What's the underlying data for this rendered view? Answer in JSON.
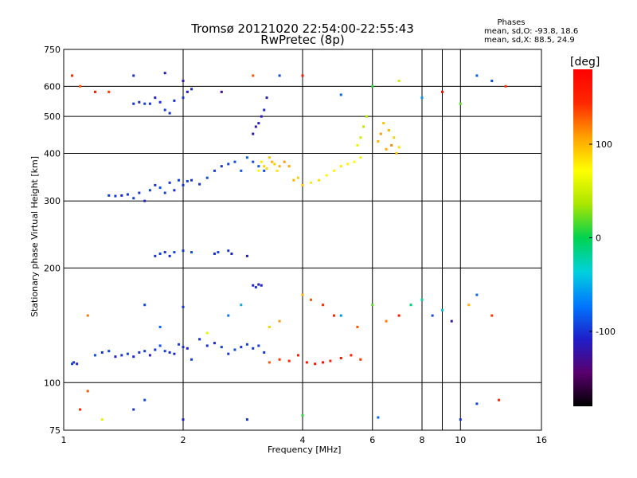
{
  "chart_data": {
    "type": "scatter",
    "title": "Tromsø 20121020 22:54:00-22:55:43",
    "subtitle": "RwPretec (8p)",
    "xlabel": "Frequency [MHz]",
    "ylabel": "Stationary phase Virtual Height [km]",
    "x_scale": "log",
    "y_scale": "log",
    "xlim": [
      1,
      16
    ],
    "ylim": [
      75,
      750
    ],
    "x_ticks": [
      1,
      2,
      4,
      6,
      8,
      10,
      16
    ],
    "x_tick_labels": [
      "1",
      "2",
      "4",
      "6",
      "8",
      "10",
      "16"
    ],
    "y_ticks": [
      75,
      100,
      200,
      300,
      400,
      500,
      600,
      750
    ],
    "y_tick_labels": [
      "75",
      "100",
      "200",
      "300",
      "400",
      "500",
      "600",
      "750"
    ],
    "grid": true,
    "colorbar": {
      "label": "[deg]",
      "range": [
        -180,
        180
      ],
      "ticks": [
        -100,
        0,
        100
      ],
      "tick_labels": [
        "-100",
        "0",
        "100"
      ],
      "colors": [
        "#000000",
        "#5a006e",
        "#1e1ec8",
        "#0078ff",
        "#00d2dc",
        "#00d250",
        "#aae600",
        "#ffff00",
        "#ffa000",
        "#ff2800",
        "#ff0000"
      ]
    },
    "stats": {
      "title": "Phases",
      "o_mode": "mean, sd,O: -93.8, 18.6",
      "x_mode": "mean, sd,X:  88.5, 24.9"
    },
    "series": [
      {
        "x": [
          1.05,
          1.06,
          1.08,
          1.2,
          1.25,
          1.3,
          1.35,
          1.4,
          1.45,
          1.5,
          1.55,
          1.6,
          1.65,
          1.7,
          1.75,
          1.8,
          1.85,
          1.9,
          1.95,
          2.0,
          2.05,
          2.1,
          2.2,
          2.3,
          2.4,
          2.5,
          2.6,
          2.7,
          2.8,
          2.9,
          3.0,
          3.1,
          3.2
        ],
        "y": [
          112,
          113,
          112,
          118,
          120,
          121,
          117,
          118,
          119,
          117,
          120,
          121,
          118,
          122,
          125,
          121,
          120,
          119,
          126,
          124,
          123,
          115,
          130,
          125,
          127,
          124,
          119,
          122,
          124,
          126,
          123,
          125,
          120
        ],
        "phase": [
          -95,
          -100,
          -105,
          -90,
          -100,
          -95,
          -110,
          -100,
          -95,
          -105,
          -100,
          -95,
          -110,
          -100,
          -90,
          -95,
          -100,
          -105,
          -95,
          -100,
          -110,
          -95,
          -100,
          -100,
          -105,
          -95,
          -100,
          -90,
          -100,
          -95,
          -100,
          -95,
          -100
        ]
      },
      {
        "x": [
          1.3,
          1.35,
          1.4,
          1.45,
          1.5,
          1.55,
          1.6,
          1.65,
          1.7,
          1.75,
          1.8,
          1.85,
          1.9,
          1.95,
          2.0,
          2.05,
          2.1,
          2.2,
          2.3,
          2.4,
          2.5,
          2.6,
          2.7,
          2.8,
          2.9,
          3.0,
          3.1,
          3.2
        ],
        "y": [
          310,
          309,
          310,
          312,
          305,
          315,
          300,
          320,
          330,
          325,
          315,
          335,
          320,
          340,
          330,
          338,
          340,
          332,
          345,
          360,
          370,
          375,
          380,
          360,
          390,
          380,
          370,
          360
        ],
        "phase": [
          -95,
          -100,
          -105,
          -100,
          -95,
          -100,
          -105,
          -95,
          -100,
          -90,
          -95,
          -100,
          -105,
          -95,
          -100,
          -95,
          -100,
          -100,
          -90,
          -95,
          -100,
          -95,
          -90,
          -85,
          -80,
          -90,
          -85,
          -90
        ]
      },
      {
        "x": [
          3.1,
          3.15,
          3.2,
          3.25,
          3.3,
          3.35,
          3.4,
          3.45,
          3.5,
          3.6,
          3.7,
          3.8,
          3.9,
          4.0,
          4.2,
          4.4,
          4.6,
          4.8,
          5.0,
          5.2,
          5.4,
          5.6
        ],
        "y": [
          360,
          380,
          370,
          365,
          390,
          380,
          375,
          360,
          370,
          380,
          370,
          340,
          345,
          330,
          335,
          340,
          350,
          360,
          370,
          375,
          380,
          390
        ],
        "phase": [
          70,
          80,
          90,
          85,
          95,
          100,
          90,
          80,
          100,
          110,
          105,
          100,
          90,
          95,
          80,
          85,
          75,
          70,
          80,
          75,
          70,
          65
        ]
      },
      {
        "x": [
          5.5,
          5.6,
          5.7,
          5.8,
          6.2,
          6.3,
          6.4,
          6.5,
          6.6,
          6.7,
          6.8,
          6.9,
          7.0
        ],
        "y": [
          420,
          440,
          470,
          500,
          430,
          450,
          480,
          410,
          460,
          420,
          440,
          400,
          415
        ],
        "phase": [
          60,
          50,
          45,
          40,
          100,
          110,
          95,
          105,
          100,
          115,
          90,
          95,
          85
        ]
      },
      {
        "x": [
          1.5,
          1.55,
          1.6,
          1.65,
          1.7,
          1.75,
          1.8,
          1.85,
          1.9,
          2.0,
          2.05,
          2.1,
          3.0,
          3.05,
          3.1,
          3.15,
          3.2,
          3.25
        ],
        "y": [
          540,
          545,
          540,
          540,
          560,
          545,
          520,
          510,
          550,
          560,
          580,
          590,
          450,
          470,
          480,
          500,
          520,
          560
        ],
        "phase": [
          -100,
          -105,
          -95,
          -100,
          -110,
          -100,
          -95,
          -100,
          -105,
          -100,
          -110,
          -105,
          -115,
          -120,
          -110,
          -115,
          -105,
          -110
        ]
      },
      {
        "x": [
          1.7,
          1.75,
          1.8,
          1.85,
          1.9,
          2.0,
          2.1,
          2.4,
          2.45,
          2.6,
          2.65,
          2.9,
          3.0,
          3.05,
          3.1,
          3.15
        ],
        "y": [
          215,
          218,
          220,
          215,
          220,
          222,
          220,
          218,
          220,
          222,
          218,
          215,
          180,
          178,
          181,
          180
        ],
        "phase": [
          -100,
          -95,
          -100,
          -105,
          -95,
          -100,
          -90,
          -100,
          -95,
          -100,
          -105,
          -110,
          -105,
          -100,
          -110,
          -105
        ]
      },
      {
        "x": [
          1.15,
          1.6,
          1.75,
          2.0,
          2.3,
          2.6,
          2.8,
          3.3,
          3.5,
          4.0,
          4.2,
          4.5,
          4.8,
          5.0,
          5.5,
          6.0,
          6.5,
          7.0,
          7.5,
          8.0,
          8.5,
          9.0,
          9.5,
          10.5,
          11.0,
          12.0
        ],
        "y": [
          150,
          160,
          140,
          158,
          135,
          150,
          160,
          140,
          145,
          170,
          165,
          160,
          150,
          150,
          140,
          160,
          145,
          150,
          160,
          165,
          150,
          155,
          145,
          160,
          170,
          150
        ],
        "phase": [
          120,
          -90,
          -80,
          -100,
          60,
          -70,
          -50,
          90,
          110,
          100,
          130,
          140,
          150,
          -60,
          130,
          20,
          120,
          160,
          -10,
          -20,
          -90,
          -40,
          -120,
          100,
          -80,
          140
        ]
      },
      {
        "x": [
          3.3,
          3.5,
          3.7,
          3.9,
          4.1,
          4.3,
          4.5,
          4.7,
          5.0,
          5.3,
          5.6
        ],
        "y": [
          113,
          115,
          114,
          118,
          113,
          112,
          113,
          114,
          116,
          118,
          115
        ],
        "phase": [
          130,
          140,
          150,
          155,
          160,
          165,
          165,
          150,
          160,
          155,
          140
        ]
      },
      {
        "x": [
          1.05,
          1.1,
          1.2,
          1.3,
          1.5,
          1.8,
          2.0,
          2.5,
          3.0,
          3.5,
          4.0,
          5.0,
          6.0,
          7.0,
          8.0,
          9.0,
          10.0,
          11.0,
          12.0,
          13.0
        ],
        "y": [
          640,
          600,
          580,
          580,
          640,
          650,
          620,
          580,
          640,
          640,
          640,
          570,
          600,
          620,
          560,
          580,
          540,
          640,
          620,
          600
        ],
        "phase": [
          150,
          130,
          160,
          140,
          -100,
          -110,
          -120,
          -130,
          130,
          -90,
          160,
          -80,
          10,
          50,
          -60,
          170,
          20,
          -80,
          -90,
          140
        ]
      },
      {
        "x": [
          1.1,
          1.15,
          1.25,
          1.5,
          1.6,
          2.0,
          2.9,
          4.0,
          6.2,
          10.0,
          11.0,
          12.5
        ],
        "y": [
          85,
          95,
          80,
          85,
          90,
          80,
          80,
          82,
          81,
          80,
          88,
          90
        ],
        "phase": [
          150,
          130,
          60,
          -100,
          -90,
          -110,
          -100,
          10,
          -80,
          -100,
          -90,
          150
        ]
      }
    ]
  }
}
